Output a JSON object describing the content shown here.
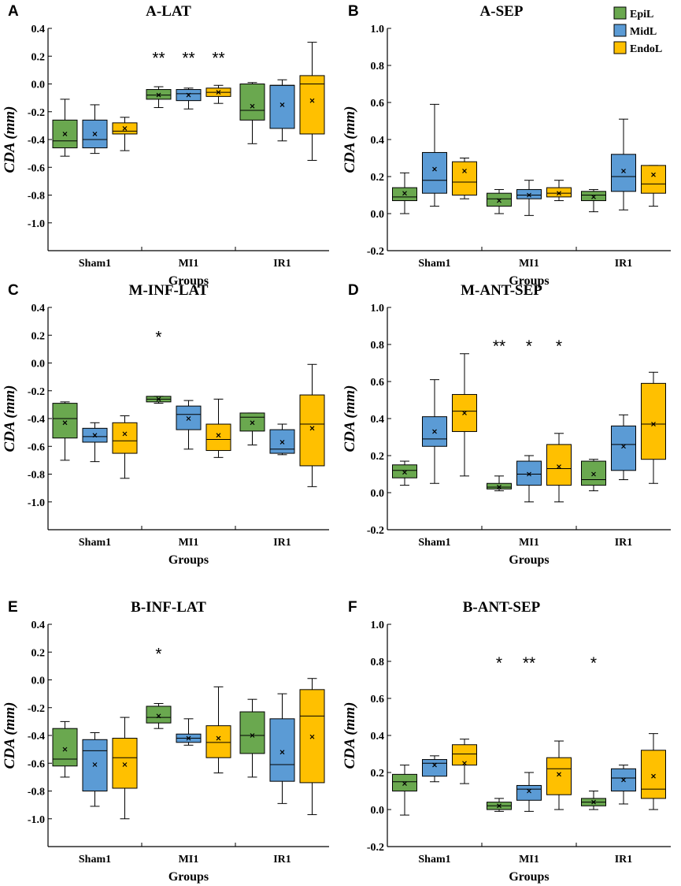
{
  "legend": {
    "items": [
      {
        "name": "EpiL",
        "color": "#6aa84f"
      },
      {
        "name": "MidL",
        "color": "#5b9bd5"
      },
      {
        "name": "EndoL",
        "color": "#ffc000"
      }
    ]
  },
  "chart_data": [
    {
      "type": "box",
      "panel": "A",
      "title": "A-LAT",
      "xlabel": "Groups",
      "ylabel": "CDA (mm)",
      "ylim": [
        -1.2,
        0.4
      ],
      "yticks": [
        0.4,
        0.2,
        0.0,
        -0.2,
        -0.4,
        -0.6,
        -0.8,
        -1.0
      ],
      "ytick_labels": [
        "0.4",
        "0.2",
        "0.0",
        "-0.2",
        "-0.4",
        "-0.6",
        "-0.8",
        "-1.0"
      ],
      "categories": [
        "Sham1",
        "MI1",
        "IR1"
      ],
      "annotations": [
        {
          "group": 1,
          "series": 0,
          "text": "**"
        },
        {
          "group": 1,
          "series": 1,
          "text": "**"
        },
        {
          "group": 1,
          "series": 2,
          "text": "**"
        }
      ],
      "series": [
        {
          "name": "EpiL",
          "boxes": [
            {
              "min": -0.52,
              "q1": -0.46,
              "median": -0.41,
              "q3": -0.26,
              "max": -0.11,
              "mean": -0.36
            },
            {
              "min": -0.17,
              "q1": -0.11,
              "median": -0.08,
              "q3": -0.04,
              "max": -0.02,
              "mean": -0.08
            },
            {
              "min": -0.43,
              "q1": -0.26,
              "median": -0.19,
              "q3": 0.0,
              "max": 0.01,
              "mean": -0.16
            }
          ]
        },
        {
          "name": "MidL",
          "boxes": [
            {
              "min": -0.5,
              "q1": -0.46,
              "median": -0.4,
              "q3": -0.26,
              "max": -0.15,
              "mean": -0.36
            },
            {
              "min": -0.18,
              "q1": -0.12,
              "median": -0.07,
              "q3": -0.04,
              "max": -0.03,
              "mean": -0.08
            },
            {
              "min": -0.41,
              "q1": -0.32,
              "median": -0.01,
              "q3": -0.01,
              "max": 0.03,
              "mean": -0.15
            }
          ]
        },
        {
          "name": "EndoL",
          "boxes": [
            {
              "min": -0.48,
              "q1": -0.36,
              "median": -0.34,
              "q3": -0.28,
              "max": -0.24,
              "mean": -0.32
            },
            {
              "min": -0.14,
              "q1": -0.09,
              "median": -0.06,
              "q3": -0.03,
              "max": -0.01,
              "mean": -0.06
            },
            {
              "min": -0.55,
              "q1": -0.36,
              "median": 0.0,
              "q3": 0.06,
              "max": 0.3,
              "mean": -0.12
            }
          ]
        }
      ]
    },
    {
      "type": "box",
      "panel": "B",
      "title": "A-SEP",
      "xlabel": "Groups",
      "ylabel": "CDA (mm)",
      "ylim": [
        -0.2,
        1.0
      ],
      "yticks": [
        1.0,
        0.8,
        0.6,
        0.4,
        0.2,
        0.0,
        -0.2
      ],
      "ytick_labels": [
        "1.0",
        "0.8",
        "0.6",
        "0.4",
        "0.2",
        "0.0",
        "-0.2"
      ],
      "categories": [
        "Sham1",
        "MI1",
        "IR1"
      ],
      "annotations": [],
      "series": [
        {
          "name": "EpiL",
          "boxes": [
            {
              "min": 0.0,
              "q1": 0.07,
              "median": 0.09,
              "q3": 0.14,
              "max": 0.22,
              "mean": 0.11
            },
            {
              "min": 0.0,
              "q1": 0.04,
              "median": 0.08,
              "q3": 0.11,
              "max": 0.13,
              "mean": 0.07
            },
            {
              "min": 0.01,
              "q1": 0.07,
              "median": 0.1,
              "q3": 0.12,
              "max": 0.13,
              "mean": 0.09
            }
          ]
        },
        {
          "name": "MidL",
          "boxes": [
            {
              "min": 0.04,
              "q1": 0.11,
              "median": 0.18,
              "q3": 0.33,
              "max": 0.59,
              "mean": 0.24
            },
            {
              "min": -0.01,
              "q1": 0.08,
              "median": 0.1,
              "q3": 0.13,
              "max": 0.18,
              "mean": 0.1
            },
            {
              "min": 0.02,
              "q1": 0.12,
              "median": 0.2,
              "q3": 0.32,
              "max": 0.51,
              "mean": 0.23
            }
          ]
        },
        {
          "name": "EndoL",
          "boxes": [
            {
              "min": 0.08,
              "q1": 0.1,
              "median": 0.17,
              "q3": 0.28,
              "max": 0.3,
              "mean": 0.23
            },
            {
              "min": 0.07,
              "q1": 0.09,
              "median": 0.11,
              "q3": 0.14,
              "max": 0.18,
              "mean": 0.11
            },
            {
              "min": 0.04,
              "q1": 0.11,
              "median": 0.16,
              "q3": 0.26,
              "max": 0.26,
              "mean": 0.21
            }
          ]
        }
      ]
    },
    {
      "type": "box",
      "panel": "C",
      "title": "M-INF-LAT",
      "xlabel": "Groups",
      "ylabel": "CDA (mm)",
      "ylim": [
        -1.2,
        0.4
      ],
      "yticks": [
        0.4,
        0.2,
        0.0,
        -0.2,
        -0.4,
        -0.6,
        -0.8,
        -1.0
      ],
      "ytick_labels": [
        "0.4",
        "0.2",
        "0.0",
        "-0.2",
        "-0.4",
        "-0.6",
        "-0.8",
        "-1.0"
      ],
      "categories": [
        "Sham1",
        "MI1",
        "IR1"
      ],
      "annotations": [
        {
          "group": 1,
          "series": 0,
          "text": "*"
        }
      ],
      "series": [
        {
          "name": "EpiL",
          "boxes": [
            {
              "min": -0.7,
              "q1": -0.54,
              "median": -0.4,
              "q3": -0.29,
              "max": -0.28,
              "mean": -0.43
            },
            {
              "min": -0.29,
              "q1": -0.28,
              "median": -0.26,
              "q3": -0.24,
              "max": -0.24,
              "mean": -0.26
            },
            {
              "min": -0.59,
              "q1": -0.49,
              "median": -0.39,
              "q3": -0.36,
              "max": -0.36,
              "mean": -0.43
            }
          ]
        },
        {
          "name": "MidL",
          "boxes": [
            {
              "min": -0.71,
              "q1": -0.57,
              "median": -0.53,
              "q3": -0.47,
              "max": -0.43,
              "mean": -0.52
            },
            {
              "min": -0.62,
              "q1": -0.48,
              "median": -0.37,
              "q3": -0.31,
              "max": -0.27,
              "mean": -0.4
            },
            {
              "min": -0.66,
              "q1": -0.65,
              "median": -0.62,
              "q3": -0.48,
              "max": -0.44,
              "mean": -0.57
            }
          ]
        },
        {
          "name": "EndoL",
          "boxes": [
            {
              "min": -0.83,
              "q1": -0.65,
              "median": -0.56,
              "q3": -0.43,
              "max": -0.38,
              "mean": -0.51
            },
            {
              "min": -0.68,
              "q1": -0.63,
              "median": -0.55,
              "q3": -0.44,
              "max": -0.26,
              "mean": -0.52
            },
            {
              "min": -0.89,
              "q1": -0.74,
              "median": -0.44,
              "q3": -0.23,
              "max": -0.01,
              "mean": -0.47
            }
          ]
        }
      ]
    },
    {
      "type": "box",
      "panel": "D",
      "title": "M-ANT-SEP",
      "xlabel": "Groups",
      "ylabel": "CDA (mm)",
      "ylim": [
        -0.2,
        1.0
      ],
      "yticks": [
        1.0,
        0.8,
        0.6,
        0.4,
        0.2,
        0.0,
        -0.2
      ],
      "ytick_labels": [
        "1.0",
        "0.8",
        "0.6",
        "0.4",
        "0.2",
        "0.0",
        "-0.2"
      ],
      "categories": [
        "Sham1",
        "MI1",
        "IR1"
      ],
      "annotations": [
        {
          "group": 1,
          "series": 0,
          "text": "**"
        },
        {
          "group": 1,
          "series": 1,
          "text": "*"
        },
        {
          "group": 1,
          "series": 2,
          "text": "*"
        }
      ],
      "series": [
        {
          "name": "EpiL",
          "boxes": [
            {
              "min": 0.04,
              "q1": 0.08,
              "median": 0.12,
              "q3": 0.15,
              "max": 0.17,
              "mean": 0.11
            },
            {
              "min": 0.01,
              "q1": 0.02,
              "median": 0.03,
              "q3": 0.05,
              "max": 0.09,
              "mean": 0.03
            },
            {
              "min": 0.01,
              "q1": 0.04,
              "median": 0.07,
              "q3": 0.17,
              "max": 0.18,
              "mean": 0.1
            }
          ]
        },
        {
          "name": "MidL",
          "boxes": [
            {
              "min": 0.05,
              "q1": 0.25,
              "median": 0.29,
              "q3": 0.41,
              "max": 0.61,
              "mean": 0.33
            },
            {
              "min": -0.05,
              "q1": 0.04,
              "median": 0.1,
              "q3": 0.17,
              "max": 0.2,
              "mean": 0.1
            },
            {
              "min": 0.07,
              "q1": 0.12,
              "median": 0.26,
              "q3": 0.36,
              "max": 0.42,
              "mean": 0.25
            }
          ]
        },
        {
          "name": "EndoL",
          "boxes": [
            {
              "min": 0.09,
              "q1": 0.33,
              "median": 0.44,
              "q3": 0.53,
              "max": 0.75,
              "mean": 0.43
            },
            {
              "min": -0.05,
              "q1": 0.04,
              "median": 0.13,
              "q3": 0.26,
              "max": 0.32,
              "mean": 0.14
            },
            {
              "min": 0.05,
              "q1": 0.18,
              "median": 0.37,
              "q3": 0.59,
              "max": 0.65,
              "mean": 0.37
            }
          ]
        }
      ]
    },
    {
      "type": "box",
      "panel": "E",
      "title": "B-INF-LAT",
      "xlabel": "Groups",
      "ylabel": "CDA (mm)",
      "ylim": [
        -1.2,
        0.4
      ],
      "yticks": [
        0.4,
        0.2,
        0.0,
        -0.2,
        -0.4,
        -0.6,
        -0.8,
        -1.0
      ],
      "ytick_labels": [
        "0.4",
        "0.2",
        "0.0",
        "-0.2",
        "-0.4",
        "-0.6",
        "-0.8",
        "-1.0"
      ],
      "categories": [
        "Sham1",
        "MI1",
        "IR1"
      ],
      "annotations": [
        {
          "group": 1,
          "series": 0,
          "text": "*"
        }
      ],
      "series": [
        {
          "name": "EpiL",
          "boxes": [
            {
              "min": -0.7,
              "q1": -0.62,
              "median": -0.57,
              "q3": -0.35,
              "max": -0.3,
              "mean": -0.5
            },
            {
              "min": -0.35,
              "q1": -0.31,
              "median": -0.27,
              "q3": -0.19,
              "max": -0.17,
              "mean": -0.26
            },
            {
              "min": -0.7,
              "q1": -0.53,
              "median": -0.4,
              "q3": -0.23,
              "max": -0.14,
              "mean": -0.4
            }
          ]
        },
        {
          "name": "MidL",
          "boxes": [
            {
              "min": -0.91,
              "q1": -0.8,
              "median": -0.51,
              "q3": -0.43,
              "max": -0.38,
              "mean": -0.61
            },
            {
              "min": -0.47,
              "q1": -0.45,
              "median": -0.42,
              "q3": -0.39,
              "max": -0.28,
              "mean": -0.42
            },
            {
              "min": -0.89,
              "q1": -0.73,
              "median": -0.61,
              "q3": -0.28,
              "max": -0.1,
              "mean": -0.52
            }
          ]
        },
        {
          "name": "EndoL",
          "boxes": [
            {
              "min": -1.0,
              "q1": -0.78,
              "median": -0.56,
              "q3": -0.42,
              "max": -0.27,
              "mean": -0.61
            },
            {
              "min": -0.67,
              "q1": -0.56,
              "median": -0.45,
              "q3": -0.33,
              "max": -0.05,
              "mean": -0.42
            },
            {
              "min": -0.97,
              "q1": -0.74,
              "median": -0.26,
              "q3": -0.07,
              "max": 0.01,
              "mean": -0.41
            }
          ]
        }
      ]
    },
    {
      "type": "box",
      "panel": "F",
      "title": "B-ANT-SEP",
      "xlabel": "Groups",
      "ylabel": "CDA (mm)",
      "ylim": [
        -0.2,
        1.0
      ],
      "yticks": [
        1.0,
        0.8,
        0.6,
        0.4,
        0.2,
        0.0,
        -0.2
      ],
      "ytick_labels": [
        "1.0",
        "0.8",
        "0.6",
        "0.4",
        "0.2",
        "0.0",
        "-0.2"
      ],
      "categories": [
        "Sham1",
        "MI1",
        "IR1"
      ],
      "annotations": [
        {
          "group": 1,
          "series": 0,
          "text": "*"
        },
        {
          "group": 1,
          "series": 1,
          "text": "**"
        },
        {
          "group": 2,
          "series": 0,
          "text": "*"
        }
      ],
      "series": [
        {
          "name": "EpiL",
          "boxes": [
            {
              "min": -0.03,
              "q1": 0.1,
              "median": 0.15,
              "q3": 0.19,
              "max": 0.24,
              "mean": 0.14
            },
            {
              "min": -0.01,
              "q1": 0.0,
              "median": 0.02,
              "q3": 0.04,
              "max": 0.06,
              "mean": 0.02
            },
            {
              "min": 0.0,
              "q1": 0.02,
              "median": 0.04,
              "q3": 0.06,
              "max": 0.1,
              "mean": 0.04
            }
          ]
        },
        {
          "name": "MidL",
          "boxes": [
            {
              "min": 0.15,
              "q1": 0.18,
              "median": 0.25,
              "q3": 0.27,
              "max": 0.29,
              "mean": 0.24
            },
            {
              "min": -0.01,
              "q1": 0.05,
              "median": 0.11,
              "q3": 0.13,
              "max": 0.2,
              "mean": 0.1
            },
            {
              "min": 0.03,
              "q1": 0.1,
              "median": 0.17,
              "q3": 0.22,
              "max": 0.24,
              "mean": 0.16
            }
          ]
        },
        {
          "name": "EndoL",
          "boxes": [
            {
              "min": 0.14,
              "q1": 0.24,
              "median": 0.3,
              "q3": 0.35,
              "max": 0.38,
              "mean": 0.25
            },
            {
              "min": 0.0,
              "q1": 0.08,
              "median": 0.22,
              "q3": 0.28,
              "max": 0.37,
              "mean": 0.19
            },
            {
              "min": 0.0,
              "q1": 0.06,
              "median": 0.11,
              "q3": 0.32,
              "max": 0.41,
              "mean": 0.18
            }
          ]
        }
      ]
    }
  ]
}
